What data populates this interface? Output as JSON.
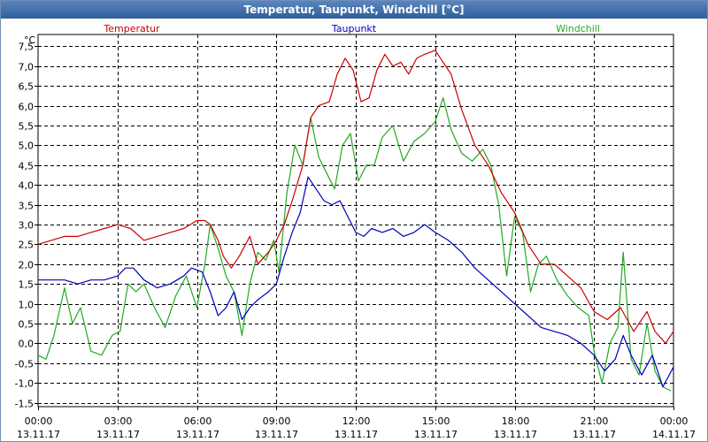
{
  "window": {
    "title": "Temperatur, Taupunkt, Windchill [°C]"
  },
  "chart_data": {
    "type": "line",
    "title": "Temperatur, Taupunkt, Windchill [°C]",
    "ylabel": "°C",
    "ylim": [
      -1.6,
      7.8
    ],
    "yticks": [
      -1.5,
      -1.0,
      -0.5,
      0.0,
      0.5,
      1.0,
      1.5,
      2.0,
      2.5,
      3.0,
      3.5,
      4.0,
      4.5,
      5.0,
      5.5,
      6.0,
      6.5,
      7.0,
      7.5
    ],
    "ytick_labels": [
      "-1,5",
      "-1,0",
      "-0,5",
      "0,0",
      "0,5",
      "1,0",
      "1,5",
      "2,0",
      "2,5",
      "3,0",
      "3,5",
      "4,0",
      "4,5",
      "5,0",
      "5,5",
      "6,0",
      "6,5",
      "7,0",
      "7,5"
    ],
    "xlim": [
      0,
      24
    ],
    "xticks": [
      0,
      3,
      6,
      9,
      12,
      15,
      18,
      21,
      24
    ],
    "xtick_times": [
      "00:00",
      "03:00",
      "06:00",
      "09:00",
      "12:00",
      "15:00",
      "18:00",
      "21:00",
      "00:00"
    ],
    "xtick_dates": [
      "13.11.17",
      "13.11.17",
      "13.11.17",
      "13.11.17",
      "13.11.17",
      "13.11.17",
      "13.11.17",
      "13.11.17",
      "14.11.17"
    ],
    "grid": true,
    "legend": [
      "Temperatur",
      "Taupunkt",
      "Windchill"
    ],
    "series": [
      {
        "name": "Temperatur",
        "color": "#cc0000",
        "points": [
          [
            0,
            2.5
          ],
          [
            0.5,
            2.6
          ],
          [
            1,
            2.7
          ],
          [
            1.5,
            2.7
          ],
          [
            2,
            2.8
          ],
          [
            2.5,
            2.9
          ],
          [
            3,
            3.0
          ],
          [
            3.5,
            2.9
          ],
          [
            4,
            2.6
          ],
          [
            4.5,
            2.7
          ],
          [
            5,
            2.8
          ],
          [
            5.5,
            2.9
          ],
          [
            6,
            3.1
          ],
          [
            6.3,
            3.1
          ],
          [
            6.5,
            3.0
          ],
          [
            6.8,
            2.6
          ],
          [
            7,
            2.2
          ],
          [
            7.3,
            1.9
          ],
          [
            7.6,
            2.2
          ],
          [
            8,
            2.7
          ],
          [
            8.3,
            2.0
          ],
          [
            8.7,
            2.3
          ],
          [
            9,
            2.6
          ],
          [
            9.3,
            3.0
          ],
          [
            9.6,
            3.6
          ],
          [
            10,
            4.5
          ],
          [
            10.3,
            5.7
          ],
          [
            10.6,
            6.0
          ],
          [
            11,
            6.1
          ],
          [
            11.3,
            6.8
          ],
          [
            11.6,
            7.2
          ],
          [
            11.9,
            6.9
          ],
          [
            12.2,
            6.1
          ],
          [
            12.5,
            6.2
          ],
          [
            12.8,
            6.9
          ],
          [
            13.1,
            7.3
          ],
          [
            13.4,
            7.0
          ],
          [
            13.7,
            7.1
          ],
          [
            14,
            6.8
          ],
          [
            14.3,
            7.2
          ],
          [
            14.6,
            7.3
          ],
          [
            15,
            7.4
          ],
          [
            15.3,
            7.1
          ],
          [
            15.6,
            6.8
          ],
          [
            16,
            5.9
          ],
          [
            16.5,
            5.0
          ],
          [
            17,
            4.5
          ],
          [
            17.5,
            3.8
          ],
          [
            18,
            3.3
          ],
          [
            18.5,
            2.5
          ],
          [
            19,
            2.0
          ],
          [
            19.5,
            2.0
          ],
          [
            20,
            1.7
          ],
          [
            20.5,
            1.4
          ],
          [
            21,
            0.8
          ],
          [
            21.5,
            0.6
          ],
          [
            22,
            0.9
          ],
          [
            22.5,
            0.3
          ],
          [
            23,
            0.8
          ],
          [
            23.3,
            0.3
          ],
          [
            23.7,
            0.0
          ],
          [
            24,
            0.3
          ]
        ]
      },
      {
        "name": "Taupunkt",
        "color": "#0000bb",
        "points": [
          [
            0,
            1.6
          ],
          [
            0.5,
            1.6
          ],
          [
            1,
            1.6
          ],
          [
            1.5,
            1.5
          ],
          [
            2,
            1.6
          ],
          [
            2.5,
            1.6
          ],
          [
            3,
            1.7
          ],
          [
            3.3,
            1.9
          ],
          [
            3.6,
            1.9
          ],
          [
            4,
            1.6
          ],
          [
            4.5,
            1.4
          ],
          [
            5,
            1.5
          ],
          [
            5.5,
            1.7
          ],
          [
            5.8,
            1.9
          ],
          [
            6.2,
            1.8
          ],
          [
            6.5,
            1.3
          ],
          [
            6.8,
            0.7
          ],
          [
            7.1,
            0.9
          ],
          [
            7.4,
            1.3
          ],
          [
            7.7,
            0.6
          ],
          [
            8,
            0.9
          ],
          [
            8.3,
            1.1
          ],
          [
            8.7,
            1.3
          ],
          [
            9,
            1.5
          ],
          [
            9.3,
            2.2
          ],
          [
            9.6,
            2.8
          ],
          [
            9.9,
            3.3
          ],
          [
            10.2,
            4.2
          ],
          [
            10.5,
            3.9
          ],
          [
            10.8,
            3.6
          ],
          [
            11.1,
            3.5
          ],
          [
            11.4,
            3.6
          ],
          [
            11.7,
            3.2
          ],
          [
            12,
            2.8
          ],
          [
            12.3,
            2.7
          ],
          [
            12.6,
            2.9
          ],
          [
            13,
            2.8
          ],
          [
            13.4,
            2.9
          ],
          [
            13.8,
            2.7
          ],
          [
            14.2,
            2.8
          ],
          [
            14.6,
            3.0
          ],
          [
            15,
            2.8
          ],
          [
            15.5,
            2.6
          ],
          [
            16,
            2.3
          ],
          [
            16.5,
            1.9
          ],
          [
            17,
            1.6
          ],
          [
            17.5,
            1.3
          ],
          [
            18,
            1.0
          ],
          [
            18.5,
            0.7
          ],
          [
            19,
            0.4
          ],
          [
            19.5,
            0.3
          ],
          [
            20,
            0.2
          ],
          [
            20.5,
            0.0
          ],
          [
            21,
            -0.3
          ],
          [
            21.4,
            -0.7
          ],
          [
            21.8,
            -0.4
          ],
          [
            22.1,
            0.2
          ],
          [
            22.4,
            -0.3
          ],
          [
            22.8,
            -0.8
          ],
          [
            23.2,
            -0.3
          ],
          [
            23.6,
            -1.1
          ],
          [
            24,
            -0.6
          ]
        ]
      },
      {
        "name": "Windchill",
        "color": "#22aa22",
        "points": [
          [
            0,
            -0.3
          ],
          [
            0.3,
            -0.4
          ],
          [
            0.6,
            0.2
          ],
          [
            1,
            1.4
          ],
          [
            1.3,
            0.5
          ],
          [
            1.6,
            0.9
          ],
          [
            2,
            -0.2
          ],
          [
            2.4,
            -0.3
          ],
          [
            2.8,
            0.2
          ],
          [
            3.1,
            0.3
          ],
          [
            3.4,
            1.5
          ],
          [
            3.7,
            1.3
          ],
          [
            4,
            1.5
          ],
          [
            4.4,
            0.9
          ],
          [
            4.8,
            0.4
          ],
          [
            5.2,
            1.2
          ],
          [
            5.6,
            1.7
          ],
          [
            6,
            0.9
          ],
          [
            6.3,
            2.0
          ],
          [
            6.5,
            3.0
          ],
          [
            6.8,
            2.4
          ],
          [
            7.1,
            1.7
          ],
          [
            7.4,
            1.3
          ],
          [
            7.7,
            0.2
          ],
          [
            8,
            1.5
          ],
          [
            8.3,
            2.3
          ],
          [
            8.6,
            2.1
          ],
          [
            8.9,
            2.6
          ],
          [
            9.1,
            1.8
          ],
          [
            9.4,
            3.8
          ],
          [
            9.7,
            5.0
          ],
          [
            10,
            4.5
          ],
          [
            10.3,
            5.7
          ],
          [
            10.6,
            4.7
          ],
          [
            10.9,
            4.3
          ],
          [
            11.2,
            3.9
          ],
          [
            11.5,
            5.0
          ],
          [
            11.8,
            5.3
          ],
          [
            12.1,
            4.1
          ],
          [
            12.4,
            4.5
          ],
          [
            12.7,
            4.5
          ],
          [
            13,
            5.2
          ],
          [
            13.4,
            5.5
          ],
          [
            13.8,
            4.6
          ],
          [
            14.2,
            5.1
          ],
          [
            14.6,
            5.3
          ],
          [
            15,
            5.6
          ],
          [
            15.3,
            6.2
          ],
          [
            15.6,
            5.4
          ],
          [
            16,
            4.8
          ],
          [
            16.4,
            4.6
          ],
          [
            16.8,
            4.9
          ],
          [
            17.1,
            4.5
          ],
          [
            17.4,
            3.5
          ],
          [
            17.7,
            1.7
          ],
          [
            18,
            3.2
          ],
          [
            18.3,
            2.8
          ],
          [
            18.6,
            1.3
          ],
          [
            18.9,
            2.0
          ],
          [
            19.2,
            2.2
          ],
          [
            19.6,
            1.6
          ],
          [
            20,
            1.2
          ],
          [
            20.4,
            0.9
          ],
          [
            20.8,
            0.7
          ],
          [
            21,
            -0.2
          ],
          [
            21.3,
            -1.0
          ],
          [
            21.6,
            0.0
          ],
          [
            21.9,
            0.4
          ],
          [
            22.1,
            2.3
          ],
          [
            22.4,
            -0.4
          ],
          [
            22.7,
            -0.8
          ],
          [
            23,
            0.5
          ],
          [
            23.3,
            -0.7
          ],
          [
            23.6,
            -1.1
          ],
          [
            23.9,
            -1.2
          ]
        ]
      }
    ]
  }
}
